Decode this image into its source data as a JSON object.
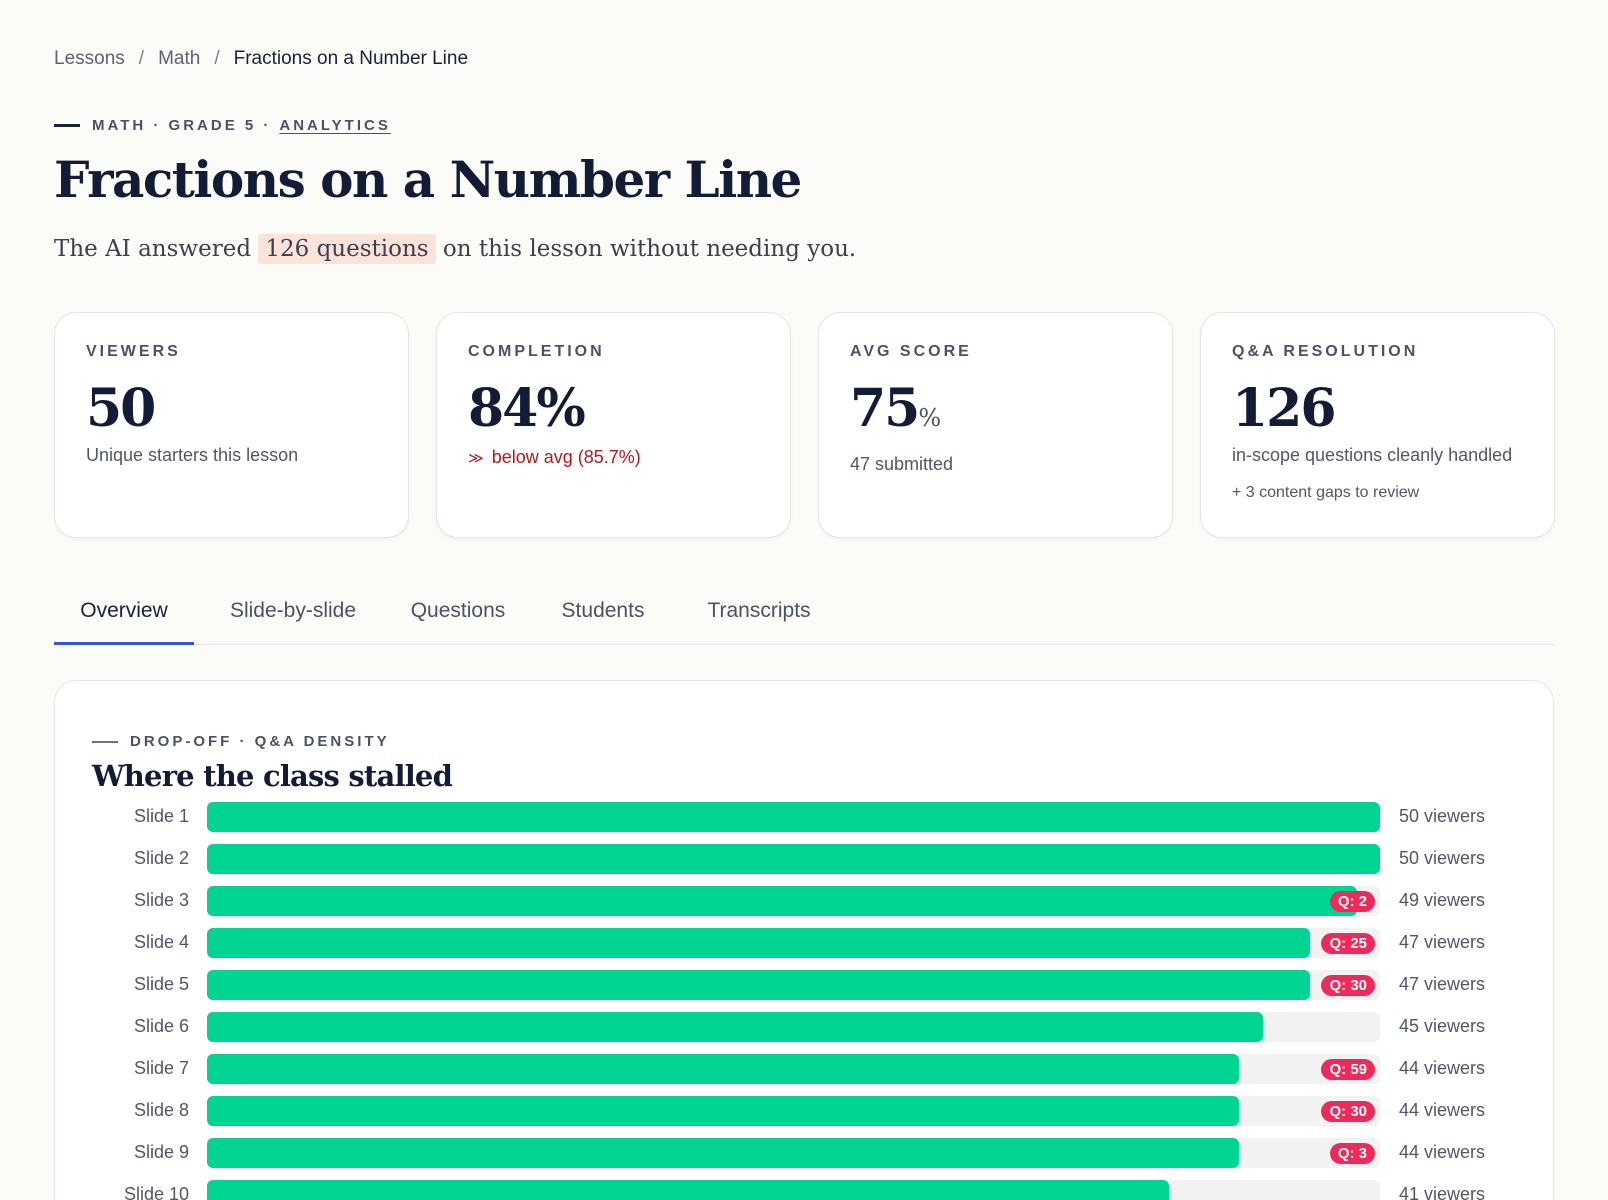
{
  "breadcrumb": {
    "items": [
      "Lessons",
      "Math"
    ],
    "current": "Fractions on a Number Line",
    "separator": "/"
  },
  "header": {
    "eyebrow": "MATH · GRADE 5 ·",
    "eyebrow_link": "ANALYTICS",
    "title": "Fractions on a Number Line",
    "lede_before": "The AI answered",
    "lede_highlight": "126 questions",
    "lede_after": "on this lesson without needing you."
  },
  "cards": {
    "viewers": {
      "label": "VIEWERS",
      "value": "50",
      "sub": "Unique starters this lesson"
    },
    "completion": {
      "label": "COMPLETION",
      "value": "84%",
      "trend_icon": "chevron-double-down",
      "sub": "below avg (85.7%)"
    },
    "avg_score": {
      "label": "AVG SCORE",
      "value": "75",
      "unit": "%",
      "sub": "47 submitted"
    },
    "qa": {
      "label": "Q&A RESOLUTION",
      "value": "126",
      "sub": "in-scope questions cleanly handled",
      "sub2": "+ 3 content gaps to review"
    }
  },
  "tabs": [
    "Overview",
    "Slide-by-slide",
    "Questions",
    "Students",
    "Transcripts"
  ],
  "active_tab": "Overview",
  "panel": {
    "eyebrow": "DROP-OFF · Q&A DENSITY",
    "title": "Where the class stalled"
  },
  "slides": [
    {
      "label": "Slide 1",
      "viewers": 50,
      "count_text": "50 viewers",
      "questions": null
    },
    {
      "label": "Slide 2",
      "viewers": 50,
      "count_text": "50 viewers",
      "questions": null
    },
    {
      "label": "Slide 3",
      "viewers": 49,
      "count_text": "49 viewers",
      "questions": "Q: 2"
    },
    {
      "label": "Slide 4",
      "viewers": 47,
      "count_text": "47 viewers",
      "questions": "Q: 25"
    },
    {
      "label": "Slide 5",
      "viewers": 47,
      "count_text": "47 viewers",
      "questions": "Q: 30"
    },
    {
      "label": "Slide 6",
      "viewers": 45,
      "count_text": "45 viewers",
      "questions": null
    },
    {
      "label": "Slide 7",
      "viewers": 44,
      "count_text": "44 viewers",
      "questions": "Q: 59"
    },
    {
      "label": "Slide 8",
      "viewers": 44,
      "count_text": "44 viewers",
      "questions": "Q: 30"
    },
    {
      "label": "Slide 9",
      "viewers": 44,
      "count_text": "44 viewers",
      "questions": "Q: 3"
    },
    {
      "label": "Slide 10",
      "viewers": 41,
      "count_text": "41 viewers",
      "questions": null
    }
  ],
  "max_viewers": 50,
  "colors": {
    "accent": "#2f55d4",
    "bar": "#00d492",
    "badge": "#ef2a5a",
    "negative": "#b4181f",
    "highlight": "#fbe3da"
  }
}
